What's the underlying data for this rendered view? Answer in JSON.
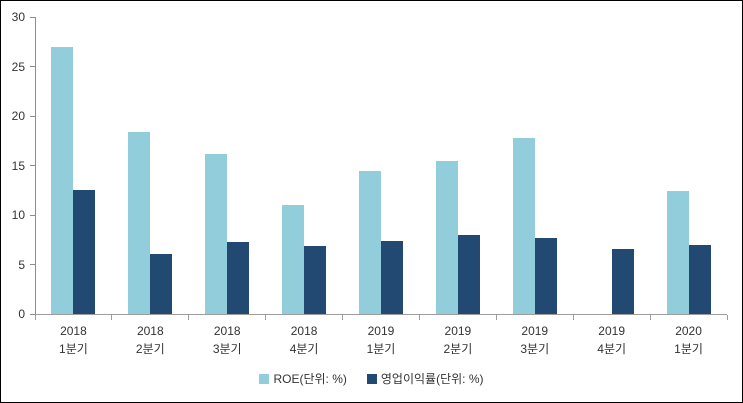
{
  "chart_data": {
    "type": "bar",
    "title": "",
    "xlabel": "",
    "ylabel": "",
    "grid": false,
    "legend_position": "bottom",
    "categories": [
      {
        "line1": "2018",
        "line2": "1분기"
      },
      {
        "line1": "2018",
        "line2": "2분기"
      },
      {
        "line1": "2018",
        "line2": "3분기"
      },
      {
        "line1": "2018",
        "line2": "4분기"
      },
      {
        "line1": "2019",
        "line2": "1분기"
      },
      {
        "line1": "2019",
        "line2": "2분기"
      },
      {
        "line1": "2019",
        "line2": "3분기"
      },
      {
        "line1": "2019",
        "line2": "4분기"
      },
      {
        "line1": "2020",
        "line2": "1분기"
      }
    ],
    "series": [
      {
        "name": "ROE(단위: %)",
        "color": "#92CDDC",
        "values": [
          27.0,
          18.4,
          16.2,
          11.0,
          14.4,
          15.5,
          17.8,
          null,
          12.4
        ]
      },
      {
        "name": "영업이익률(단위: %)",
        "color": "#214971",
        "values": [
          12.5,
          6.1,
          7.3,
          6.9,
          7.4,
          8.0,
          7.7,
          6.6,
          7.0
        ]
      }
    ],
    "y_axis": {
      "min": 0,
      "max": 30,
      "step": 5,
      "ticks": [
        0,
        5,
        10,
        15,
        20,
        25,
        30
      ]
    }
  },
  "frame": {
    "border_color": "#000000",
    "background": "#ffffff"
  }
}
